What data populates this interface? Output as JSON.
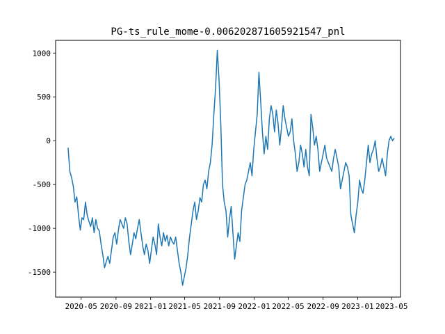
{
  "chart_data": {
    "type": "line",
    "title": "PG-ts_rule_mome-0.006202871605921547_pnl",
    "xlabel": "",
    "ylabel": "",
    "x_start": "2020-03-16",
    "x_end": "2023-05-10",
    "xlim": [
      "2020-02-01",
      "2023-06-01"
    ],
    "ylim": [
      -1785,
      1145
    ],
    "x_ticks": [
      "2020-05",
      "2020-09",
      "2021-01",
      "2021-05",
      "2021-09",
      "2022-01",
      "2022-05",
      "2022-09",
      "2023-01",
      "2023-05"
    ],
    "x_tick_dates": [
      "2020-05-01",
      "2020-09-01",
      "2021-01-01",
      "2021-05-01",
      "2021-09-01",
      "2022-01-01",
      "2022-05-01",
      "2022-09-01",
      "2023-01-01",
      "2023-05-01"
    ],
    "y_ticks": [
      -1500,
      -1000,
      -500,
      0,
      500,
      1000
    ],
    "grid": false,
    "series": [
      {
        "color": "#1f77b4",
        "values": [
          -80,
          -350,
          -420,
          -520,
          -700,
          -640,
          -850,
          -1020,
          -880,
          -900,
          -700,
          -850,
          -920,
          -980,
          -880,
          -1050,
          -900,
          -1000,
          -1030,
          -1180,
          -1300,
          -1450,
          -1380,
          -1320,
          -1400,
          -1250,
          -1100,
          -1050,
          -1180,
          -1020,
          -900,
          -950,
          -1000,
          -880,
          -950,
          -1150,
          -1300,
          -1180,
          -1050,
          -1120,
          -1000,
          -900,
          -1050,
          -1200,
          -1300,
          -1180,
          -1250,
          -1400,
          -1250,
          -1100,
          -1180,
          -1300,
          -950,
          -1100,
          -1200,
          -1050,
          -1150,
          -1080,
          -1200,
          -1100,
          -1150,
          -1180,
          -1100,
          -1250,
          -1400,
          -1500,
          -1650,
          -1550,
          -1450,
          -1300,
          -1100,
          -950,
          -800,
          -700,
          -900,
          -800,
          -650,
          -700,
          -500,
          -450,
          -550,
          -350,
          -250,
          -50,
          300,
          600,
          1030,
          700,
          200,
          -500,
          -700,
          -800,
          -1100,
          -900,
          -750,
          -1050,
          -1350,
          -1200,
          -1050,
          -1150,
          -800,
          -650,
          -500,
          -450,
          -350,
          -250,
          -400,
          -100,
          100,
          300,
          780,
          450,
          100,
          -150,
          50,
          -100,
          250,
          400,
          300,
          100,
          350,
          200,
          -50,
          150,
          400,
          250,
          150,
          50,
          100,
          250,
          0,
          -150,
          -350,
          -250,
          -50,
          -150,
          -300,
          -100,
          -300,
          -400,
          300,
          150,
          -50,
          50,
          -100,
          -350,
          -250,
          -150,
          -50,
          -200,
          -250,
          -300,
          -350,
          -200,
          -100,
          -200,
          -300,
          -550,
          -450,
          -350,
          -250,
          -300,
          -400,
          -850,
          -950,
          -1050,
          -850,
          -700,
          -450,
          -550,
          -600,
          -450,
          -250,
          -50,
          -250,
          -150,
          -100,
          0,
          -200,
          -350,
          -300,
          -200,
          -300,
          -400,
          -150,
          0,
          50,
          0,
          30
        ]
      }
    ]
  }
}
